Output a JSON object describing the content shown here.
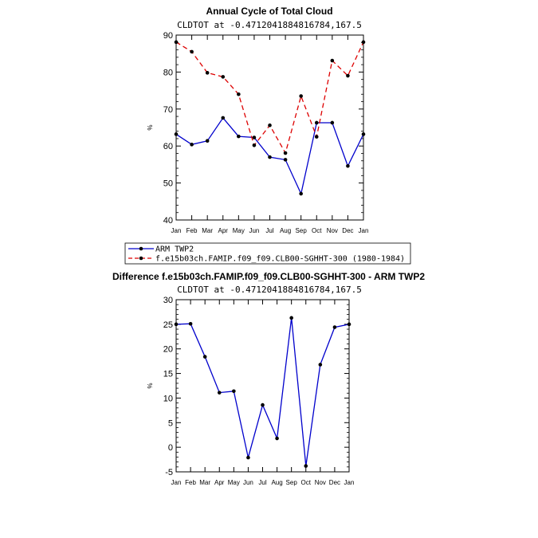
{
  "chart_data": [
    {
      "type": "line",
      "title": "Annual Cycle of Total Cloud",
      "subtitle": "CLDTOT at -0.4712041884816784,167.5",
      "ylabel": "%",
      "ylim": [
        40,
        90
      ],
      "yticks": [
        40,
        50,
        60,
        70,
        80,
        90
      ],
      "categories": [
        "Jan",
        "Feb",
        "Mar",
        "Apr",
        "May",
        "Jun",
        "Jul",
        "Aug",
        "Sep",
        "Oct",
        "Nov",
        "Dec",
        "Jan"
      ],
      "series": [
        {
          "name": "ARM TWP2",
          "color": "#0000cc",
          "dash": "",
          "values": [
            63.2,
            60.4,
            61.4,
            67.6,
            62.6,
            62.3,
            57.0,
            56.3,
            47.1,
            66.3,
            66.3,
            54.6,
            63.2
          ]
        },
        {
          "name": "f.e15b03ch.FAMIP.f09_f09.CLB00-SGHHT-300 (1980-1984)",
          "color": "#dd0000",
          "dash": "6,4",
          "values": [
            88.1,
            85.5,
            79.8,
            78.7,
            74.0,
            60.2,
            65.6,
            58.1,
            73.5,
            62.5,
            83.1,
            79.0,
            88.1
          ]
        }
      ],
      "legend": [
        "ARM TWP2",
        "f.e15b03ch.FAMIP.f09_f09.CLB00-SGHHT-300 (1980-1984)"
      ]
    },
    {
      "type": "line",
      "title": "Difference f.e15b03ch.FAMIP.f09_f09.CLB00-SGHHT-300 - ARM TWP2",
      "subtitle": "CLDTOT at -0.4712041884816784,167.5",
      "ylabel": "%",
      "ylim": [
        -5,
        30
      ],
      "yticks": [
        -5,
        0,
        5,
        10,
        15,
        20,
        25,
        30
      ],
      "categories": [
        "Jan",
        "Feb",
        "Mar",
        "Apr",
        "May",
        "Jun",
        "Jul",
        "Aug",
        "Sep",
        "Oct",
        "Nov",
        "Dec",
        "Jan"
      ],
      "series": [
        {
          "name": "Difference",
          "color": "#0000cc",
          "dash": "",
          "values": [
            25.0,
            25.1,
            18.4,
            11.1,
            11.4,
            -2.1,
            8.6,
            1.8,
            26.3,
            -3.8,
            16.8,
            24.4,
            25.0
          ]
        }
      ]
    }
  ]
}
